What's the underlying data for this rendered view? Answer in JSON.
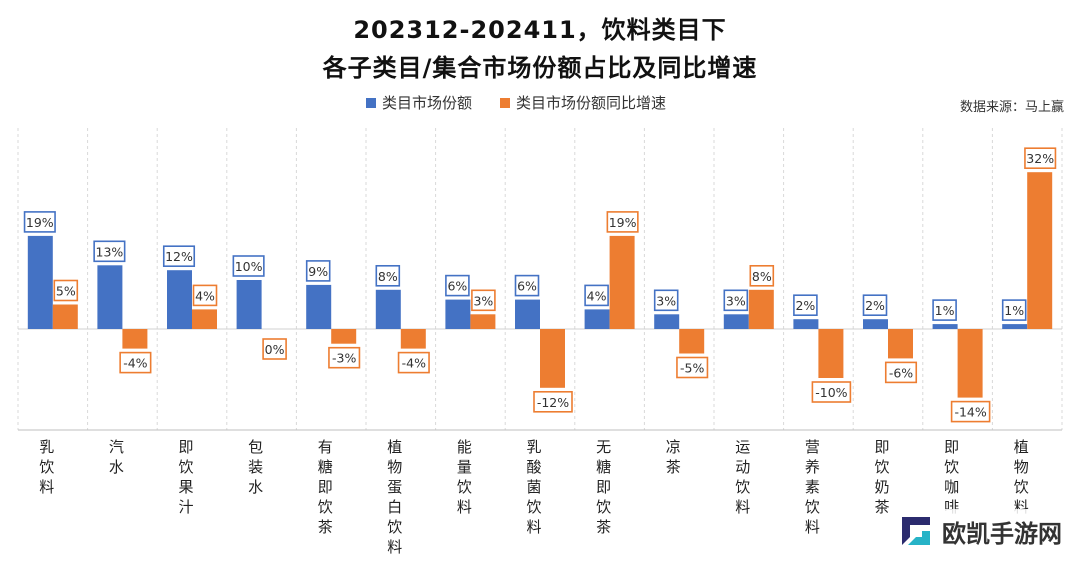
{
  "header": {
    "title_line1": "202312-202411，饮料类目下",
    "title_line2": "各子类目/集合市场份额占比及同比增速"
  },
  "source": "数据来源：马上赢",
  "watermark": {
    "text": "欧凯手游网"
  },
  "colors": {
    "share": "#4472C4",
    "growth": "#ED7D31",
    "grid": "#d9d9d9"
  },
  "chart_data": {
    "type": "bar",
    "title": "202312-202411，饮料类目下 各子类目/集合市场份额占比及同比增速",
    "legend_position": "top",
    "categories": [
      "乳饮料",
      "汽水",
      "即饮果汁",
      "包装水",
      "有糖即饮茶",
      "植物蛋白饮料",
      "能量饮料",
      "乳酸菌饮料",
      "无糖即饮茶",
      "凉茶",
      "运动饮料",
      "营养素饮料",
      "即饮奶茶",
      "即饮咖啡",
      "植物饮料"
    ],
    "series": [
      {
        "name": "类目市场份额",
        "values": [
          19,
          13,
          12,
          10,
          9,
          8,
          6,
          6,
          4,
          3,
          3,
          2,
          2,
          1,
          1
        ]
      },
      {
        "name": "类目市场份额同比增速",
        "values": [
          5,
          -4,
          4,
          0,
          -3,
          -4,
          3,
          -12,
          19,
          -5,
          8,
          -10,
          -6,
          -14,
          32
        ]
      }
    ],
    "value_suffix": "%",
    "grid": true
  }
}
